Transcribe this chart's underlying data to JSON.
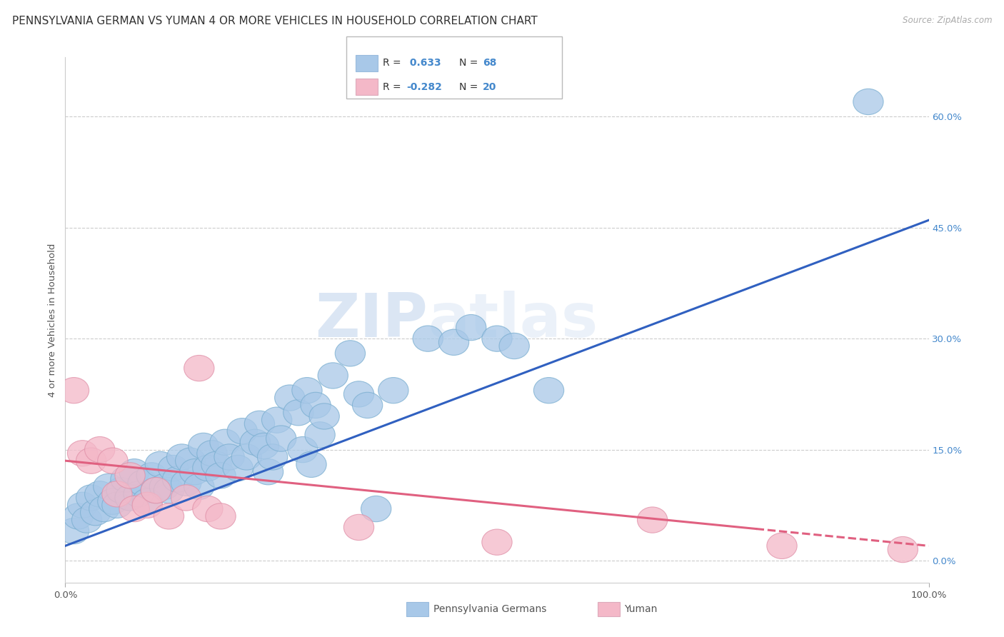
{
  "title": "PENNSYLVANIA GERMAN VS YUMAN 4 OR MORE VEHICLES IN HOUSEHOLD CORRELATION CHART",
  "source": "Source: ZipAtlas.com",
  "ylabel": "4 or more Vehicles in Household",
  "xlim": [
    0,
    100
  ],
  "ylim": [
    -3,
    68
  ],
  "yticks": [
    0,
    15,
    30,
    45,
    60
  ],
  "ytick_labels": [
    "0.0%",
    "15.0%",
    "30.0%",
    "45.0%",
    "60.0%"
  ],
  "xticks": [
    0,
    100
  ],
  "xtick_labels": [
    "0.0%",
    "100.0%"
  ],
  "legend_r_blue": "0.633",
  "legend_n_blue": "68",
  "legend_r_pink": "-0.282",
  "legend_n_pink": "20",
  "blue_color": "#a8c8e8",
  "pink_color": "#f4b8c8",
  "blue_edge_color": "#7aaed0",
  "pink_edge_color": "#e090a8",
  "blue_line_color": "#3060c0",
  "pink_line_color": "#e06080",
  "background_color": "#ffffff",
  "grid_color": "#cccccc",
  "title_fontsize": 11,
  "axis_label_fontsize": 9.5,
  "tick_fontsize": 9.5,
  "blue_scatter": [
    [
      1.0,
      4.0
    ],
    [
      1.5,
      6.0
    ],
    [
      2.0,
      7.5
    ],
    [
      2.5,
      5.5
    ],
    [
      3.0,
      8.5
    ],
    [
      3.5,
      6.5
    ],
    [
      4.0,
      9.0
    ],
    [
      4.5,
      7.0
    ],
    [
      5.0,
      10.0
    ],
    [
      5.5,
      8.0
    ],
    [
      6.0,
      7.5
    ],
    [
      6.5,
      9.5
    ],
    [
      7.0,
      11.0
    ],
    [
      7.5,
      8.5
    ],
    [
      8.0,
      12.0
    ],
    [
      8.5,
      9.0
    ],
    [
      9.0,
      10.5
    ],
    [
      9.5,
      8.0
    ],
    [
      10.0,
      11.5
    ],
    [
      10.5,
      9.5
    ],
    [
      11.0,
      13.0
    ],
    [
      11.5,
      10.0
    ],
    [
      12.0,
      9.5
    ],
    [
      12.5,
      12.5
    ],
    [
      13.0,
      11.0
    ],
    [
      13.5,
      14.0
    ],
    [
      14.0,
      10.5
    ],
    [
      14.5,
      13.5
    ],
    [
      15.0,
      12.0
    ],
    [
      15.5,
      10.0
    ],
    [
      16.0,
      15.5
    ],
    [
      16.5,
      12.5
    ],
    [
      17.0,
      14.5
    ],
    [
      17.5,
      13.0
    ],
    [
      18.0,
      11.5
    ],
    [
      18.5,
      16.0
    ],
    [
      19.0,
      14.0
    ],
    [
      20.0,
      12.5
    ],
    [
      20.5,
      17.5
    ],
    [
      21.0,
      14.0
    ],
    [
      22.0,
      16.0
    ],
    [
      22.5,
      18.5
    ],
    [
      23.0,
      15.5
    ],
    [
      23.5,
      12.0
    ],
    [
      24.0,
      14.0
    ],
    [
      24.5,
      19.0
    ],
    [
      25.0,
      16.5
    ],
    [
      26.0,
      22.0
    ],
    [
      27.0,
      20.0
    ],
    [
      27.5,
      15.0
    ],
    [
      28.0,
      23.0
    ],
    [
      28.5,
      13.0
    ],
    [
      29.0,
      21.0
    ],
    [
      29.5,
      17.0
    ],
    [
      30.0,
      19.5
    ],
    [
      31.0,
      25.0
    ],
    [
      33.0,
      28.0
    ],
    [
      34.0,
      22.5
    ],
    [
      35.0,
      21.0
    ],
    [
      36.0,
      7.0
    ],
    [
      38.0,
      23.0
    ],
    [
      42.0,
      30.0
    ],
    [
      45.0,
      29.5
    ],
    [
      47.0,
      31.5
    ],
    [
      50.0,
      30.0
    ],
    [
      52.0,
      29.0
    ],
    [
      56.0,
      23.0
    ],
    [
      93.0,
      62.0
    ]
  ],
  "pink_scatter": [
    [
      1.0,
      23.0
    ],
    [
      2.0,
      14.5
    ],
    [
      3.0,
      13.5
    ],
    [
      4.0,
      15.0
    ],
    [
      5.5,
      13.5
    ],
    [
      6.0,
      9.0
    ],
    [
      7.5,
      11.5
    ],
    [
      8.0,
      7.0
    ],
    [
      9.5,
      7.5
    ],
    [
      10.5,
      9.5
    ],
    [
      12.0,
      6.0
    ],
    [
      14.0,
      8.5
    ],
    [
      15.5,
      26.0
    ],
    [
      16.5,
      7.0
    ],
    [
      18.0,
      6.0
    ],
    [
      34.0,
      4.5
    ],
    [
      50.0,
      2.5
    ],
    [
      68.0,
      5.5
    ],
    [
      83.0,
      2.0
    ],
    [
      97.0,
      1.5
    ]
  ],
  "blue_line_x": [
    0,
    100
  ],
  "blue_line_y_start": 2.0,
  "blue_line_y_end": 46.0,
  "pink_line_x": [
    0,
    100
  ],
  "pink_line_y_start": 13.5,
  "pink_line_y_end": 2.0,
  "pink_solid_end": 80
}
